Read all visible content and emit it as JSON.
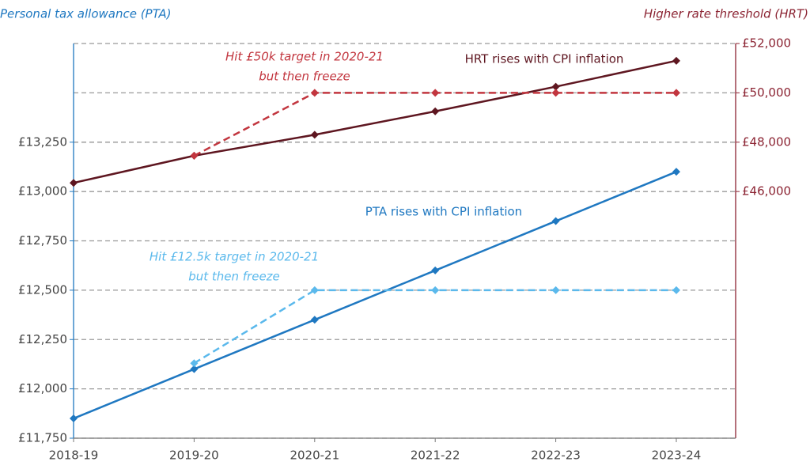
{
  "chart_data": {
    "type": "line",
    "y_label": "Personal tax allowance (PTA)",
    "y2_label": "Higher rate threshold (HRT)",
    "y_color": "#1f78c1",
    "y2_color": "#8b2332",
    "categories": [
      "2018-19",
      "2019-20",
      "2020-21",
      "2021-22",
      "2022-23",
      "2023-24"
    ],
    "ylim": [
      11750,
      13750
    ],
    "yticks": [
      {
        "value": 11750,
        "label": "£11,750"
      },
      {
        "value": 12000,
        "label": "£12,000"
      },
      {
        "value": 12250,
        "label": "£12,250"
      },
      {
        "value": 12500,
        "label": "£12,500"
      },
      {
        "value": 12750,
        "label": "£12,750"
      },
      {
        "value": 13000,
        "label": "£13,000"
      },
      {
        "value": 13250,
        "label": "£13,250"
      }
    ],
    "y2lim": [
      36000,
      52000
    ],
    "y2ticks": [
      {
        "value": 46000,
        "label": "£46,000"
      },
      {
        "value": 48000,
        "label": "£48,000"
      },
      {
        "value": 50000,
        "label": "£50,000"
      },
      {
        "value": 52000,
        "label": "£52,000"
      }
    ],
    "grid": true,
    "series": [
      {
        "name": "PTA rises with CPI inflation",
        "color": "#1f78c1",
        "style": "solid",
        "values": [
          11850,
          12100,
          12350,
          12600,
          12850,
          13100
        ]
      },
      {
        "name": "HRT rises with CPI inflation",
        "color": "#5e1620",
        "style": "solid",
        "axis": "y2",
        "values": [
          46350,
          47450,
          48300,
          49250,
          50250,
          51300
        ]
      },
      {
        "name": "Hit £12.5k target in 2020-21 but then freeze",
        "lines": [
          "Hit £12.5k target in 2020-21",
          "but then freeze"
        ],
        "color": "#5bb9ec",
        "style": "dashed",
        "values": [
          null,
          12130,
          12500,
          12500,
          12500,
          12500
        ]
      },
      {
        "name": "Hit £50k target in 2020-21 but then freeze",
        "lines": [
          "Hit £50k target in 2020-21",
          "but then freeze"
        ],
        "color": "#c2363f",
        "style": "dashed",
        "axis": "y2",
        "values": [
          null,
          47450,
          50000,
          50000,
          50000,
          50000
        ]
      }
    ]
  }
}
